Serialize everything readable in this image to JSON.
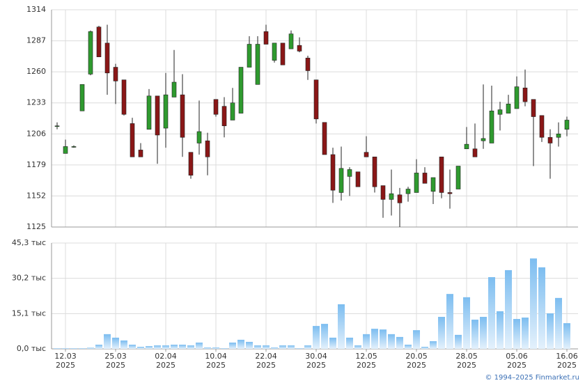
{
  "chart_data": [
    {
      "type": "candlestick",
      "categories": [
        null,
        "12.03 2025",
        null,
        null,
        null,
        null,
        null,
        "25.03 2025",
        null,
        null,
        null,
        null,
        null,
        "02.04 2025",
        null,
        null,
        null,
        null,
        null,
        "10.04 2025",
        null,
        null,
        null,
        null,
        null,
        "22.04 2025",
        null,
        null,
        null,
        null,
        null,
        "30.04 2025",
        null,
        null,
        null,
        null,
        null,
        "12.05 2025",
        null,
        null,
        null,
        null,
        null,
        "20.05 2025",
        null,
        null,
        null,
        null,
        null,
        "28.05 2025",
        null,
        null,
        null,
        null,
        null,
        "05.06 2025",
        null,
        null,
        null,
        null,
        null,
        "16.06 2025"
      ],
      "open": [
        1213,
        1189,
        1195,
        1226,
        1258,
        1299,
        1285,
        1264,
        1253,
        1215,
        1192,
        1210,
        1239,
        1211,
        1238,
        1240,
        1190,
        1198,
        1200,
        1236,
        1230,
        1218,
        1224,
        1264,
        1249,
        1295,
        1270,
        1285,
        1280,
        1283,
        1272,
        1253,
        1216,
        1188,
        1155,
        1169,
        1173,
        1190,
        1186,
        1161,
        1149,
        1153,
        1154,
        1155,
        1172,
        1156,
        1186,
        1155,
        1158,
        1193,
        1193,
        1200,
        1198,
        1223,
        1224,
        1228,
        1246,
        1236,
        1222,
        1203,
        1203,
        1210
      ],
      "high": [
        1216,
        1201,
        1196,
        1249,
        1296,
        1300,
        1301,
        1267,
        1253,
        1220,
        1198,
        1245,
        1239,
        1259,
        1279,
        1258,
        1190,
        1235,
        1207,
        1236,
        1238,
        1246,
        1264,
        1291,
        1291,
        1301,
        1285,
        1285,
        1296,
        1290,
        1274,
        1253,
        1216,
        1194,
        1195,
        1177,
        1173,
        1204,
        1186,
        1161,
        1175,
        1159,
        1160,
        1184,
        1177,
        1168,
        1186,
        1175,
        1178,
        1212,
        1215,
        1249,
        1248,
        1234,
        1240,
        1256,
        1262,
        1236,
        1222,
        1210,
        1216,
        1221
      ],
      "low": [
        1210,
        1189,
        1194,
        1226,
        1257,
        1273,
        1240,
        1232,
        1222,
        1186,
        1186,
        1210,
        1180,
        1194,
        1238,
        1186,
        1167,
        1188,
        1170,
        1221,
        1203,
        1218,
        1224,
        1264,
        1249,
        1284,
        1268,
        1266,
        1280,
        1277,
        1253,
        1215,
        1188,
        1146,
        1148,
        1152,
        1160,
        1186,
        1155,
        1133,
        1135,
        1125,
        1147,
        1155,
        1163,
        1145,
        1150,
        1141,
        1158,
        1193,
        1186,
        1193,
        1198,
        1209,
        1224,
        1228,
        1230,
        1178,
        1199,
        1167,
        1195,
        1204
      ],
      "close": [
        1213,
        1195,
        1195,
        1249,
        1295,
        1273,
        1259,
        1252,
        1223,
        1186,
        1186,
        1239,
        1205,
        1240,
        1251,
        1203,
        1170,
        1208,
        1186,
        1223,
        1213,
        1233,
        1264,
        1284,
        1284,
        1284,
        1285,
        1266,
        1293,
        1278,
        1261,
        1219,
        1188,
        1157,
        1176,
        1175,
        1160,
        1186,
        1160,
        1149,
        1154,
        1146,
        1158,
        1172,
        1163,
        1168,
        1155,
        1154,
        1178,
        1197,
        1186,
        1202,
        1226,
        1227,
        1232,
        1247,
        1234,
        1221,
        1203,
        1198,
        1206,
        1218
      ],
      "up_color": "#2f9a2f",
      "down_color": "#8a1717",
      "ylim": [
        1125,
        1314
      ],
      "yticks": [
        1125,
        1152,
        1179,
        1206,
        1233,
        1260,
        1287,
        1314
      ],
      "grid": true
    },
    {
      "type": "bar",
      "values": [
        0.3,
        0.3,
        0.3,
        0.3,
        0.5,
        1.8,
        6.3,
        4.8,
        3.6,
        1.8,
        0.9,
        1.2,
        1.5,
        1.5,
        1.8,
        1.8,
        1.5,
        2.7,
        0.6,
        0.6,
        0.3,
        2.7,
        3.9,
        3.0,
        1.5,
        1.5,
        0.6,
        1.5,
        1.5,
        0.3,
        1.5,
        9.8,
        10.7,
        4.8,
        19.1,
        4.8,
        1.5,
        6.3,
        8.6,
        8.3,
        6.3,
        5.1,
        1.8,
        8.0,
        0.9,
        3.3,
        13.7,
        23.5,
        6.0,
        22.1,
        12.5,
        13.7,
        30.7,
        16.1,
        33.7,
        12.8,
        13.4,
        38.7,
        34.9,
        15.2,
        21.8,
        11.0
      ],
      "color": "#7cbdf0",
      "ylim": [
        0,
        45.3
      ],
      "yticks": [
        {
          "value": 0,
          "label": "0,0 тыс"
        },
        {
          "value": 15.1,
          "label": "15,1 тыс"
        },
        {
          "value": 30.2,
          "label": "30,2 тыс"
        },
        {
          "value": 45.3,
          "label": "45,3 тыс"
        }
      ],
      "grid": true
    }
  ],
  "footer": "© 1994–2025 Finmarket.ru"
}
